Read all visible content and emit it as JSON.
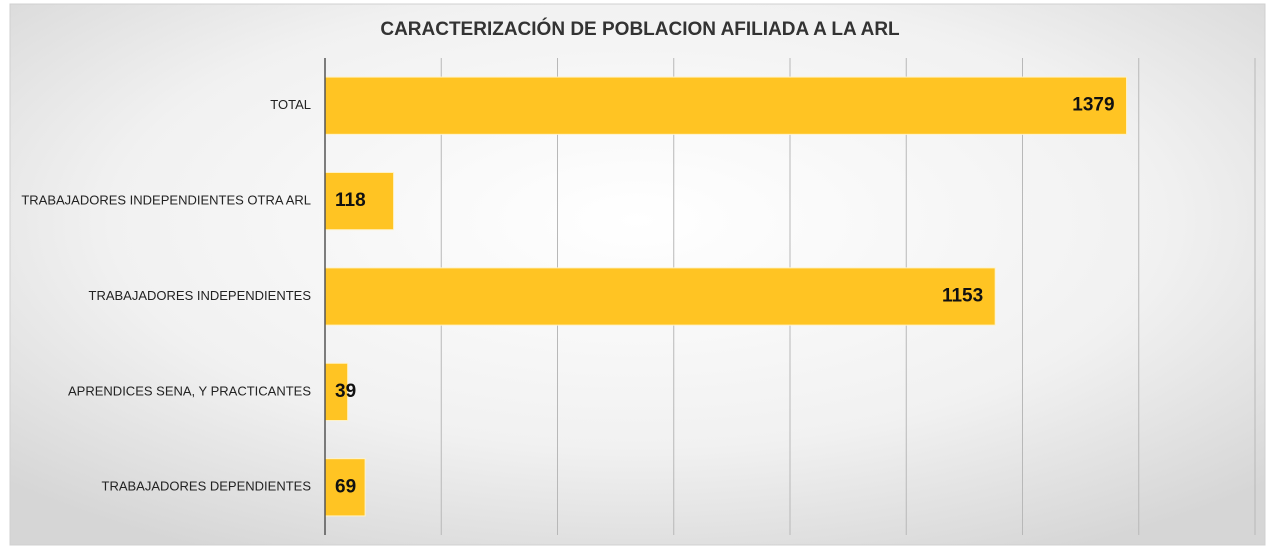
{
  "chart_data": {
    "type": "bar",
    "orientation": "horizontal",
    "title": "CARACTERIZACIÓN DE POBLACION AFILIADA A LA ARL",
    "categories": [
      "TOTAL",
      "TRABAJADORES INDEPENDIENTES OTRA ARL",
      "TRABAJADORES INDEPENDIENTES",
      "APRENDICES SENA, Y PRACTICANTES",
      "TRABAJADORES DEPENDIENTES"
    ],
    "values": [
      1379,
      118,
      1153,
      39,
      69
    ],
    "color": "#ffc423",
    "xlim": [
      0,
      1600
    ],
    "xticks": [
      0,
      200,
      400,
      600,
      800,
      1000,
      1200,
      1400,
      1600
    ],
    "grid": true
  }
}
